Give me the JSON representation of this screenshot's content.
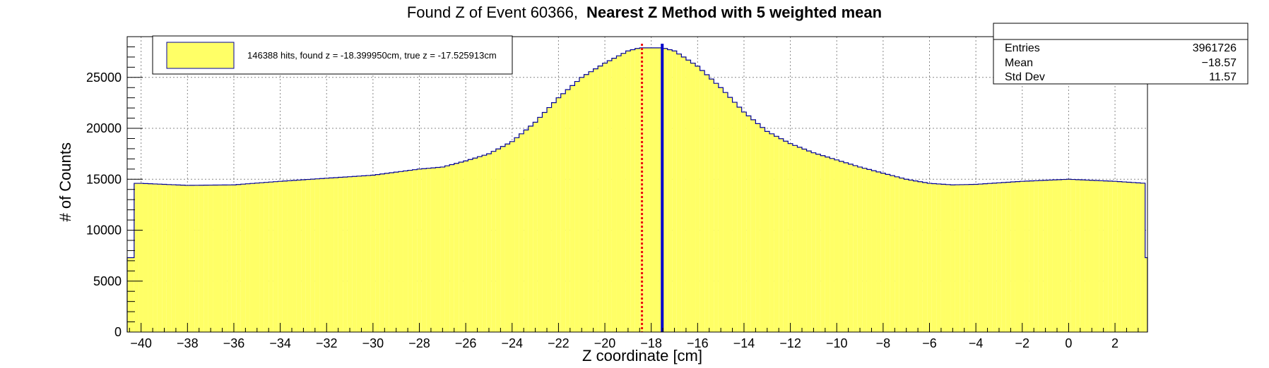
{
  "chart_data": {
    "type": "bar",
    "title": "Found Z of Event 60366,",
    "subtitle": "Nearest Z Method with 5 weighted mean",
    "xlabel": "Z coordinate [cm]",
    "ylabel": "# of Counts",
    "xlim": [
      -40.6,
      3.4
    ],
    "ylim": [
      0,
      29000
    ],
    "x_ticks": [
      -40,
      -38,
      -36,
      -34,
      -32,
      -30,
      -28,
      -26,
      -24,
      -22,
      -20,
      -18,
      -16,
      -14,
      -12,
      -10,
      -8,
      -6,
      -4,
      -2,
      0,
      2
    ],
    "x_tick_labels": [
      "−40",
      "−38",
      "−36",
      "−34",
      "−32",
      "−30",
      "−28",
      "−26",
      "−24",
      "−22",
      "−20",
      "−18",
      "−16",
      "−14",
      "−12",
      "−10",
      "−8",
      "−6",
      "−4",
      "−2",
      "0",
      "2"
    ],
    "y_ticks": [
      0,
      5000,
      10000,
      15000,
      20000,
      25000
    ],
    "y_tick_labels": [
      "0",
      "5000",
      "10000",
      "15000",
      "20000",
      "25000"
    ],
    "grid": true,
    "histogram_profile": {
      "x": [
        -40.0,
        -38.0,
        -36.0,
        -34.0,
        -32.0,
        -30.0,
        -28.0,
        -27.0,
        -26.0,
        -25.0,
        -24.0,
        -23.0,
        -22.0,
        -21.0,
        -20.0,
        -19.0,
        -18.5,
        -17.5,
        -17.0,
        -16.0,
        -15.0,
        -14.0,
        -13.0,
        -12.0,
        -11.0,
        -10.0,
        -9.0,
        -8.0,
        -7.0,
        -6.0,
        -5.0,
        -4.0,
        -2.0,
        0.0,
        2.0,
        3.3
      ],
      "y": [
        14600,
        14400,
        14450,
        14800,
        15100,
        15400,
        16000,
        16200,
        16800,
        17500,
        18700,
        20600,
        23000,
        25000,
        26400,
        27600,
        27900,
        27900,
        27600,
        26100,
        24000,
        21600,
        19700,
        18500,
        17600,
        16900,
        16200,
        15600,
        15000,
        14600,
        14450,
        14500,
        14800,
        15000,
        14800,
        14600
      ],
      "edge_bins": [
        {
          "x_min": -40.6,
          "x_max": -40.3,
          "y": 7300
        },
        {
          "x_min": 3.3,
          "x_max": 3.4,
          "y": 7300
        }
      ],
      "bin_width": 0.2,
      "fill_color": "#ffff66",
      "line_color": "#000099"
    },
    "series": [
      {
        "name": "146388 hits, found z = -18.399950cm, true z = -17.525913cm",
        "color": "#ffff66"
      }
    ],
    "markers": [
      {
        "x": -18.39995,
        "color": "#ee1111",
        "style": "dotted"
      },
      {
        "x": -17.525913,
        "color": "#0000cc",
        "style": "solid"
      }
    ],
    "legend_placement": "top-left",
    "stats": {
      "entries_label": "Entries",
      "entries": "3961726",
      "mean_label": "Mean",
      "mean": "−18.57",
      "stddev_label": "Std Dev",
      "stddev": "11.57"
    }
  }
}
